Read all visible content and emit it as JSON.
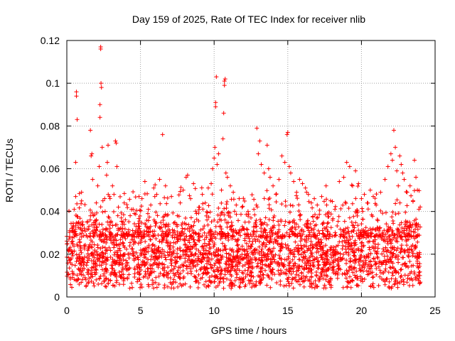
{
  "chart_data": {
    "type": "scatter",
    "title": "Day 159 of 2025, Rate Of TEC Index for receiver nlib",
    "xlabel": "GPS time / hours",
    "ylabel": "ROTI / TECUs",
    "xlim": [
      0,
      25
    ],
    "ylim": [
      0,
      0.12
    ],
    "x_ticks": [
      "0",
      "5",
      "10",
      "15",
      "20",
      "25"
    ],
    "x_tick_values": [
      0,
      5,
      10,
      15,
      20,
      25
    ],
    "y_ticks": [
      "0",
      "0.02",
      "0.04",
      "0.06",
      "0.08",
      "0.1",
      "0.12"
    ],
    "y_tick_values": [
      0,
      0.02,
      0.04,
      0.06,
      0.08,
      0.1,
      0.12
    ],
    "grid": true,
    "marker": "plus",
    "series_color": "#ff0000",
    "series": [
      {
        "name": "ROTI",
        "points": [
          [
            0.1,
            0.022
          ],
          [
            0.2,
            0.031
          ],
          [
            0.3,
            0.018
          ],
          [
            0.4,
            0.026
          ],
          [
            0.5,
            0.041
          ],
          [
            0.6,
            0.047
          ],
          [
            0.6,
            0.063
          ],
          [
            0.65,
            0.094
          ],
          [
            0.65,
            0.096
          ],
          [
            0.7,
            0.083
          ],
          [
            0.8,
            0.035
          ],
          [
            0.9,
            0.024
          ],
          [
            1.0,
            0.049
          ],
          [
            1.2,
            0.016
          ],
          [
            1.4,
            0.028
          ],
          [
            1.5,
            0.033
          ],
          [
            1.6,
            0.078
          ],
          [
            1.65,
            0.066
          ],
          [
            1.7,
            0.067
          ],
          [
            1.75,
            0.055
          ],
          [
            1.8,
            0.038
          ],
          [
            1.9,
            0.021
          ],
          [
            2.0,
            0.044
          ],
          [
            2.1,
            0.052
          ],
          [
            2.2,
            0.061
          ],
          [
            2.25,
            0.09
          ],
          [
            2.25,
            0.084
          ],
          [
            2.3,
            0.116
          ],
          [
            2.3,
            0.117
          ],
          [
            2.32,
            0.1
          ],
          [
            2.35,
            0.098
          ],
          [
            2.4,
            0.07
          ],
          [
            2.45,
            0.045
          ],
          [
            2.5,
            0.029
          ],
          [
            2.6,
            0.04
          ],
          [
            2.7,
            0.057
          ],
          [
            2.75,
            0.063
          ],
          [
            2.8,
            0.071
          ],
          [
            2.9,
            0.047
          ],
          [
            3.0,
            0.035
          ],
          [
            3.1,
            0.052
          ],
          [
            3.2,
            0.048
          ],
          [
            3.3,
            0.073
          ],
          [
            3.35,
            0.072
          ],
          [
            3.4,
            0.061
          ],
          [
            3.5,
            0.042
          ],
          [
            3.7,
            0.037
          ],
          [
            3.9,
            0.034
          ],
          [
            4.1,
            0.029
          ],
          [
            4.3,
            0.038
          ],
          [
            4.5,
            0.041
          ],
          [
            4.7,
            0.033
          ],
          [
            4.9,
            0.047
          ],
          [
            5.1,
            0.046
          ],
          [
            5.3,
            0.054
          ],
          [
            5.5,
            0.039
          ],
          [
            5.7,
            0.043
          ],
          [
            5.9,
            0.051
          ],
          [
            6.1,
            0.048
          ],
          [
            6.3,
            0.055
          ],
          [
            6.5,
            0.076
          ],
          [
            6.7,
            0.052
          ],
          [
            6.9,
            0.034
          ],
          [
            7.1,
            0.047
          ],
          [
            7.3,
            0.031
          ],
          [
            7.5,
            0.038
          ],
          [
            7.7,
            0.044
          ],
          [
            7.9,
            0.05
          ],
          [
            8.1,
            0.056
          ],
          [
            8.2,
            0.057
          ],
          [
            8.4,
            0.046
          ],
          [
            8.6,
            0.053
          ],
          [
            8.8,
            0.039
          ],
          [
            9.0,
            0.042
          ],
          [
            9.2,
            0.048
          ],
          [
            9.4,
            0.044
          ],
          [
            9.6,
            0.051
          ],
          [
            9.8,
            0.053
          ],
          [
            9.9,
            0.06
          ],
          [
            10.0,
            0.065
          ],
          [
            10.05,
            0.07
          ],
          [
            10.1,
            0.089
          ],
          [
            10.1,
            0.091
          ],
          [
            10.15,
            0.103
          ],
          [
            10.2,
            0.062
          ],
          [
            10.3,
            0.067
          ],
          [
            10.5,
            0.05
          ],
          [
            10.6,
            0.074
          ],
          [
            10.65,
            0.086
          ],
          [
            10.7,
            0.099
          ],
          [
            10.7,
            0.101
          ],
          [
            10.75,
            0.102
          ],
          [
            10.8,
            0.058
          ],
          [
            10.9,
            0.056
          ],
          [
            11.1,
            0.052
          ],
          [
            11.3,
            0.049
          ],
          [
            11.5,
            0.043
          ],
          [
            11.7,
            0.046
          ],
          [
            11.9,
            0.042
          ],
          [
            12.1,
            0.035
          ],
          [
            12.3,
            0.04
          ],
          [
            12.5,
            0.037
          ],
          [
            12.7,
            0.041
          ],
          [
            12.9,
            0.079
          ],
          [
            13.0,
            0.067
          ],
          [
            13.1,
            0.073
          ],
          [
            13.2,
            0.062
          ],
          [
            13.4,
            0.058
          ],
          [
            13.6,
            0.071
          ],
          [
            13.7,
            0.06
          ],
          [
            13.8,
            0.056
          ],
          [
            14.0,
            0.052
          ],
          [
            14.2,
            0.048
          ],
          [
            14.4,
            0.055
          ],
          [
            14.6,
            0.066
          ],
          [
            14.8,
            0.063
          ],
          [
            14.95,
            0.076
          ],
          [
            15.0,
            0.077
          ],
          [
            15.1,
            0.061
          ],
          [
            15.2,
            0.058
          ],
          [
            15.4,
            0.054
          ],
          [
            15.6,
            0.049
          ],
          [
            15.8,
            0.055
          ],
          [
            16.0,
            0.053
          ],
          [
            16.2,
            0.051
          ],
          [
            16.4,
            0.048
          ],
          [
            16.6,
            0.044
          ],
          [
            16.8,
            0.046
          ],
          [
            17.0,
            0.043
          ],
          [
            17.3,
            0.047
          ],
          [
            17.6,
            0.052
          ],
          [
            17.9,
            0.045
          ],
          [
            18.2,
            0.041
          ],
          [
            18.5,
            0.054
          ],
          [
            18.8,
            0.056
          ],
          [
            19.0,
            0.063
          ],
          [
            19.2,
            0.061
          ],
          [
            19.4,
            0.052
          ],
          [
            19.6,
            0.059
          ],
          [
            19.8,
            0.053
          ],
          [
            20.0,
            0.046
          ],
          [
            20.2,
            0.048
          ],
          [
            20.4,
            0.044
          ],
          [
            20.6,
            0.05
          ],
          [
            20.8,
            0.047
          ],
          [
            21.0,
            0.043
          ],
          [
            21.3,
            0.049
          ],
          [
            21.6,
            0.055
          ],
          [
            21.8,
            0.061
          ],
          [
            22.0,
            0.067
          ],
          [
            22.1,
            0.064
          ],
          [
            22.2,
            0.078
          ],
          [
            22.3,
            0.07
          ],
          [
            22.4,
            0.059
          ],
          [
            22.5,
            0.052
          ],
          [
            22.6,
            0.066
          ],
          [
            22.7,
            0.062
          ],
          [
            22.8,
            0.058
          ],
          [
            22.9,
            0.055
          ],
          [
            23.1,
            0.049
          ],
          [
            23.3,
            0.052
          ],
          [
            23.5,
            0.045
          ],
          [
            23.6,
            0.064
          ],
          [
            23.7,
            0.056
          ],
          [
            23.8,
            0.05
          ],
          [
            23.9,
            0.041
          ]
        ],
        "baseline_band": {
          "description": "dense cloud of points across all hours",
          "x_range": [
            0,
            24
          ],
          "y_range": [
            0.004,
            0.035
          ],
          "typical_center": 0.018
        }
      }
    ]
  }
}
